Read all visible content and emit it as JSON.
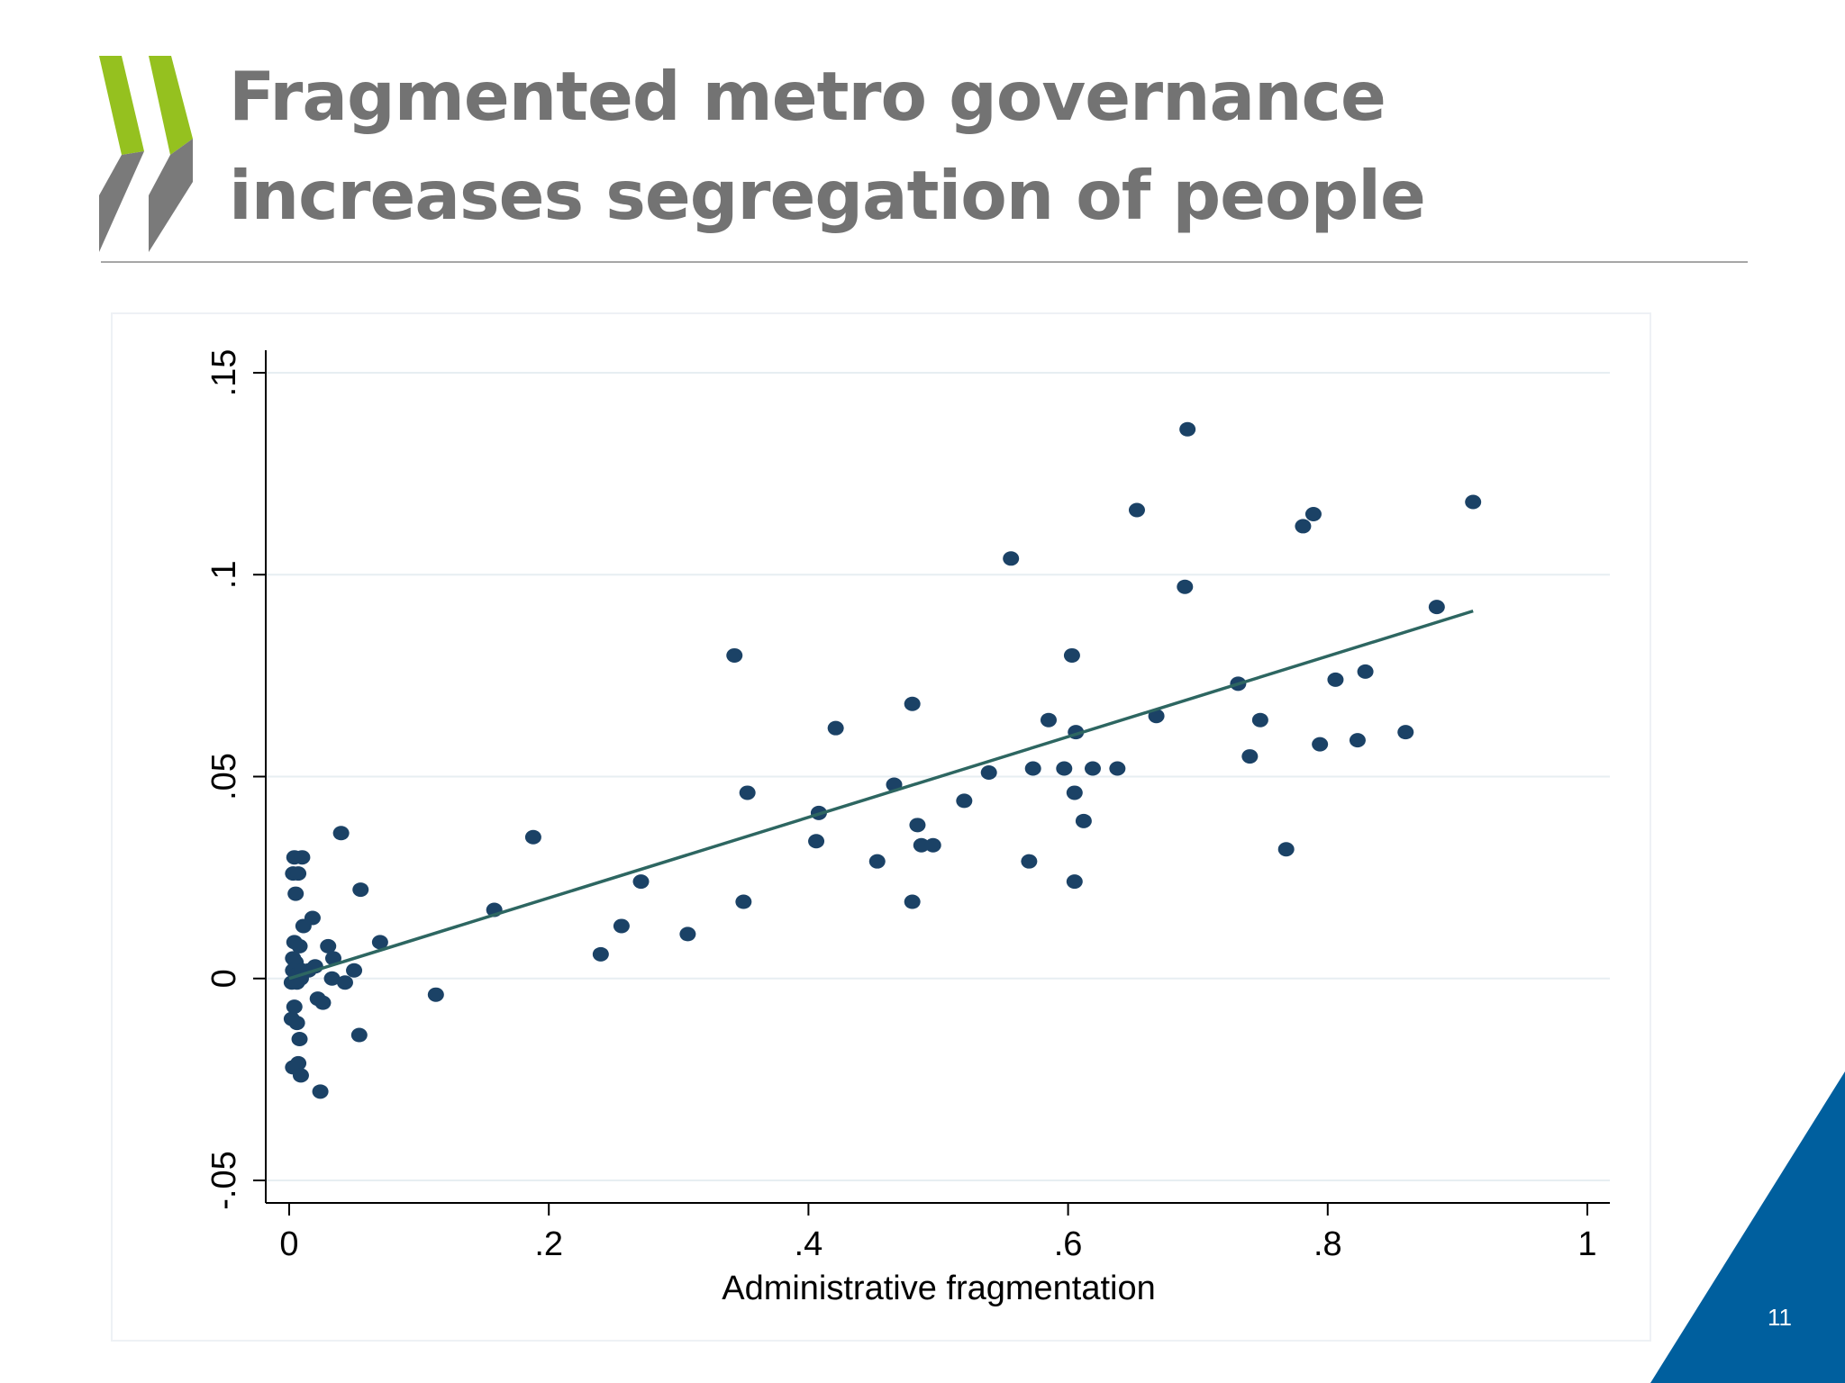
{
  "slide": {
    "title": "Fragmented metro governance increases segregation of people",
    "page_number": "11",
    "colors": {
      "title": "#737373",
      "logo_green": "#95c11f",
      "logo_grey": "#7a7a7a",
      "corner_blue": "#005f9e",
      "marker": "#1b4266",
      "fit_line": "#2d6661",
      "grid": "#e7eef2"
    }
  },
  "chart_data": {
    "type": "scatter",
    "xlabel": "Administrative fragmentation",
    "ylabel": "",
    "xlim": [
      0,
      1
    ],
    "ylim": [
      -0.05,
      0.15
    ],
    "x_ticks": [
      0,
      0.2,
      0.4,
      0.6,
      0.8,
      1
    ],
    "x_tick_labels": [
      "0",
      ".2",
      ".4",
      ".6",
      ".8",
      "1"
    ],
    "y_ticks": [
      -0.05,
      0,
      0.05,
      0.1,
      0.15
    ],
    "y_tick_labels": [
      "-.05",
      "0",
      ".05",
      ".1",
      ".15"
    ],
    "grid": "horizontal",
    "series": [
      {
        "points": [
          [
            0.004,
            0.03
          ],
          [
            0.01,
            0.03
          ],
          [
            0.003,
            0.026
          ],
          [
            0.007,
            0.026
          ],
          [
            0.005,
            0.021
          ],
          [
            0.011,
            0.013
          ],
          [
            0.018,
            0.015
          ],
          [
            0.004,
            0.009
          ],
          [
            0.008,
            0.008
          ],
          [
            0.003,
            0.005
          ],
          [
            0.005,
            0.004
          ],
          [
            0.003,
            0.002
          ],
          [
            0.006,
            0.001
          ],
          [
            0.01,
            0.002
          ],
          [
            0.015,
            0.002
          ],
          [
            0.02,
            0.003
          ],
          [
            0.002,
            -0.001
          ],
          [
            0.006,
            -0.001
          ],
          [
            0.009,
            0.0
          ],
          [
            0.004,
            -0.007
          ],
          [
            0.002,
            -0.01
          ],
          [
            0.006,
            -0.011
          ],
          [
            0.008,
            -0.015
          ],
          [
            0.003,
            -0.022
          ],
          [
            0.007,
            -0.021
          ],
          [
            0.009,
            -0.024
          ],
          [
            0.024,
            -0.028
          ],
          [
            0.022,
            -0.005
          ],
          [
            0.026,
            -0.006
          ],
          [
            0.03,
            0.008
          ],
          [
            0.034,
            0.005
          ],
          [
            0.033,
            0.0
          ],
          [
            0.043,
            -0.001
          ],
          [
            0.05,
            0.002
          ],
          [
            0.054,
            -0.014
          ],
          [
            0.055,
            0.022
          ],
          [
            0.04,
            0.036
          ],
          [
            0.07,
            0.009
          ],
          [
            0.113,
            -0.004
          ],
          [
            0.158,
            0.017
          ],
          [
            0.188,
            0.035
          ],
          [
            0.24,
            0.006
          ],
          [
            0.256,
            0.013
          ],
          [
            0.271,
            0.024
          ],
          [
            0.307,
            0.011
          ],
          [
            0.343,
            0.08
          ],
          [
            0.35,
            0.019
          ],
          [
            0.353,
            0.046
          ],
          [
            0.406,
            0.034
          ],
          [
            0.408,
            0.041
          ],
          [
            0.421,
            0.062
          ],
          [
            0.453,
            0.029
          ],
          [
            0.466,
            0.048
          ],
          [
            0.48,
            0.068
          ],
          [
            0.48,
            0.019
          ],
          [
            0.484,
            0.038
          ],
          [
            0.487,
            0.033
          ],
          [
            0.496,
            0.033
          ],
          [
            0.52,
            0.044
          ],
          [
            0.539,
            0.051
          ],
          [
            0.556,
            0.104
          ],
          [
            0.57,
            0.029
          ],
          [
            0.573,
            0.052
          ],
          [
            0.585,
            0.064
          ],
          [
            0.597,
            0.052
          ],
          [
            0.603,
            0.08
          ],
          [
            0.605,
            0.046
          ],
          [
            0.606,
            0.061
          ],
          [
            0.605,
            0.024
          ],
          [
            0.612,
            0.039
          ],
          [
            0.619,
            0.052
          ],
          [
            0.638,
            0.052
          ],
          [
            0.653,
            0.116
          ],
          [
            0.668,
            0.065
          ],
          [
            0.69,
            0.097
          ],
          [
            0.692,
            0.136
          ],
          [
            0.731,
            0.073
          ],
          [
            0.74,
            0.055
          ],
          [
            0.748,
            0.064
          ],
          [
            0.768,
            0.032
          ],
          [
            0.781,
            0.112
          ],
          [
            0.789,
            0.115
          ],
          [
            0.794,
            0.058
          ],
          [
            0.806,
            0.074
          ],
          [
            0.823,
            0.059
          ],
          [
            0.829,
            0.076
          ],
          [
            0.86,
            0.061
          ],
          [
            0.884,
            0.092
          ],
          [
            0.912,
            0.118
          ]
        ]
      }
    ],
    "fit_line": {
      "x": [
        0,
        0.912
      ],
      "y": [
        0,
        0.091
      ]
    }
  }
}
